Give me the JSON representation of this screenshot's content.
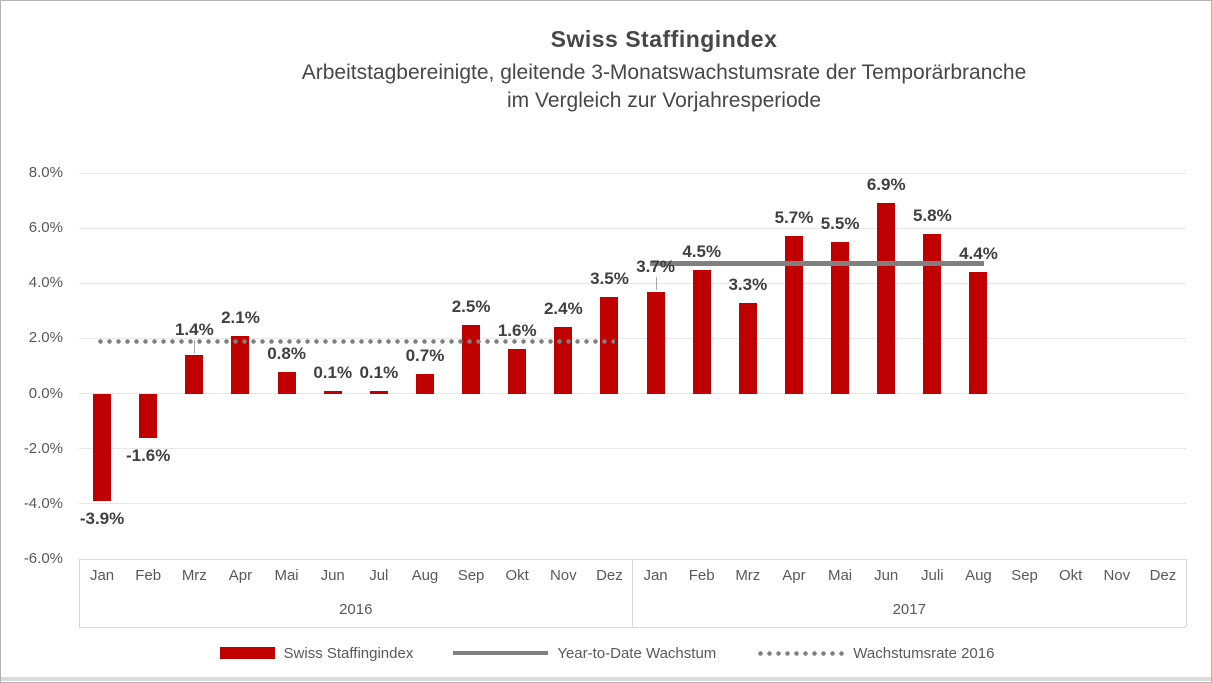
{
  "chart_data": {
    "type": "bar",
    "title": "Swiss Staffingindex",
    "subtitle_lines": [
      "Arbeitstagbereinigte, gleitende 3-Monatswachstumsrate der Temporärbranche",
      "im Vergleich zur Vorjahresperiode"
    ],
    "y_axis": {
      "min": -6,
      "max": 8,
      "step": 2,
      "tick_labels": [
        "8.0%",
        "6.0%",
        "4.0%",
        "2.0%",
        "0.0%",
        "-2.0%",
        "-4.0%",
        "-6.0%"
      ],
      "grid": true
    },
    "x_axis": {
      "groups": [
        {
          "year": "2016",
          "months": [
            "Jan",
            "Feb",
            "Mrz",
            "Apr",
            "Mai",
            "Jun",
            "Jul",
            "Aug",
            "Sep",
            "Okt",
            "Nov",
            "Dez"
          ]
        },
        {
          "year": "2017",
          "months": [
            "Jan",
            "Feb",
            "Mrz",
            "Apr",
            "Mai",
            "Jun",
            "Juli",
            "Aug",
            "Sep",
            "Okt",
            "Nov",
            "Dez"
          ]
        }
      ]
    },
    "series": [
      {
        "name": "Swiss Staffingindex",
        "type": "bar",
        "color": "#c00000",
        "values": [
          -3.9,
          -1.6,
          1.4,
          2.1,
          0.8,
          0.1,
          0.1,
          0.7,
          2.5,
          1.6,
          2.4,
          3.5,
          3.7,
          4.5,
          3.3,
          5.7,
          5.5,
          6.9,
          5.8,
          4.4,
          null,
          null,
          null,
          null
        ],
        "labels": [
          "-3.9%",
          "-1.6%",
          "1.4%",
          "2.1%",
          "0.8%",
          "0.1%",
          "0.1%",
          "0.7%",
          "2.5%",
          "1.6%",
          "2.4%",
          "3.5%",
          "3.7%",
          "4.5%",
          "3.3%",
          "5.7%",
          "5.5%",
          "6.9%",
          "5.8%",
          "4.4%",
          null,
          null,
          null,
          null
        ],
        "raised_label_indexes": [
          2,
          12
        ]
      },
      {
        "name": "Year-to-Date Wachstum",
        "type": "line",
        "style": "solid",
        "color": "#808080",
        "value": 4.7,
        "start_index": 12,
        "end_index": 19
      },
      {
        "name": "Wachstumsrate 2016",
        "type": "line",
        "style": "dotted",
        "color": "#7f7f7f",
        "value": 1.9,
        "start_index": 0,
        "end_index": 11
      }
    ],
    "legend": [
      {
        "swatch": "bar",
        "label": "Swiss Staffingindex",
        "color": "#c00000"
      },
      {
        "swatch": "solid-line",
        "label": "Year-to-Date Wachstum",
        "color": "#808080"
      },
      {
        "swatch": "dotted-line",
        "label": "Wachstumsrate 2016",
        "color": "#7f7f7f"
      }
    ]
  }
}
